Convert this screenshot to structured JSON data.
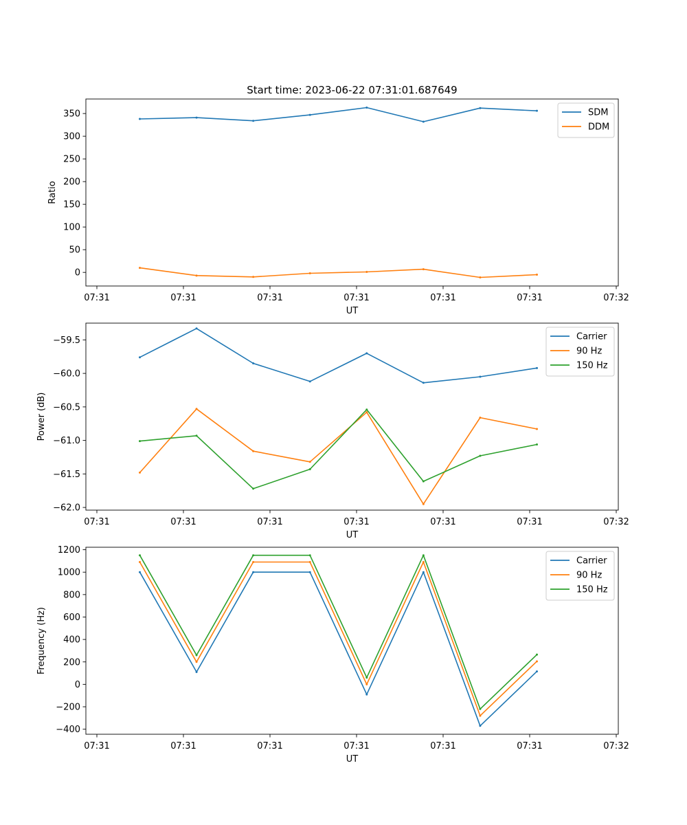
{
  "figure_title": "Start time: 2023-06-22 07:31:01.687649",
  "chart_data": [
    {
      "type": "line",
      "title": "Start time: 2023-06-22 07:31:01.687649",
      "xlabel": "UT",
      "ylabel": "Ratio",
      "x_tick_labels": [
        "07:31",
        "07:31",
        "07:31",
        "07:31",
        "07:31",
        "07:31",
        "07:32"
      ],
      "y_ticks": [
        0,
        50,
        100,
        150,
        200,
        250,
        300,
        350
      ],
      "ylim": [
        -30,
        382
      ],
      "grid": false,
      "legend_position": "top-right",
      "series": [
        {
          "name": "SDM",
          "color": "#1f77b4",
          "values": [
            338,
            341,
            334,
            347,
            363,
            332,
            362,
            356
          ]
        },
        {
          "name": "DDM",
          "color": "#ff7f0e",
          "values": [
            10,
            -7,
            -10,
            -2,
            1,
            7,
            -11,
            -5
          ]
        }
      ]
    },
    {
      "type": "line",
      "title": "",
      "xlabel": "UT",
      "ylabel": "Power (dB)",
      "x_tick_labels": [
        "07:31",
        "07:31",
        "07:31",
        "07:31",
        "07:31",
        "07:31",
        "07:32"
      ],
      "y_ticks": [
        -62.0,
        -61.5,
        -61.0,
        -60.5,
        -60.0,
        -59.5
      ],
      "ylim": [
        -62.04,
        -59.25
      ],
      "grid": false,
      "legend_position": "top-right",
      "series": [
        {
          "name": "Carrier",
          "color": "#1f77b4",
          "values": [
            -59.76,
            -59.33,
            -59.85,
            -60.12,
            -59.7,
            -60.14,
            -60.05,
            -59.92
          ]
        },
        {
          "name": "90 Hz",
          "color": "#ff7f0e",
          "values": [
            -61.48,
            -60.53,
            -61.16,
            -61.32,
            -60.58,
            -61.95,
            -60.66,
            -60.83
          ]
        },
        {
          "name": "150 Hz",
          "color": "#2ca02c",
          "values": [
            -61.01,
            -60.93,
            -61.72,
            -61.43,
            -60.54,
            -61.61,
            -61.23,
            -61.06
          ]
        }
      ]
    },
    {
      "type": "line",
      "title": "",
      "xlabel": "UT",
      "ylabel": "Frequency (Hz)",
      "x_tick_labels": [
        "07:31",
        "07:31",
        "07:31",
        "07:31",
        "07:31",
        "07:31",
        "07:32"
      ],
      "y_ticks": [
        -400,
        -200,
        0,
        200,
        400,
        600,
        800,
        1000,
        1200
      ],
      "ylim": [
        -445,
        1222
      ],
      "grid": false,
      "legend_position": "top-right",
      "series": [
        {
          "name": "Carrier",
          "color": "#1f77b4",
          "values": [
            1000,
            110,
            1000,
            1000,
            -90,
            1000,
            -370,
            115
          ]
        },
        {
          "name": "90 Hz",
          "color": "#ff7f0e",
          "values": [
            1090,
            200,
            1090,
            1090,
            0,
            1090,
            -280,
            205
          ]
        },
        {
          "name": "150 Hz",
          "color": "#2ca02c",
          "values": [
            1150,
            260,
            1150,
            1150,
            60,
            1150,
            -220,
            265
          ]
        }
      ]
    }
  ]
}
